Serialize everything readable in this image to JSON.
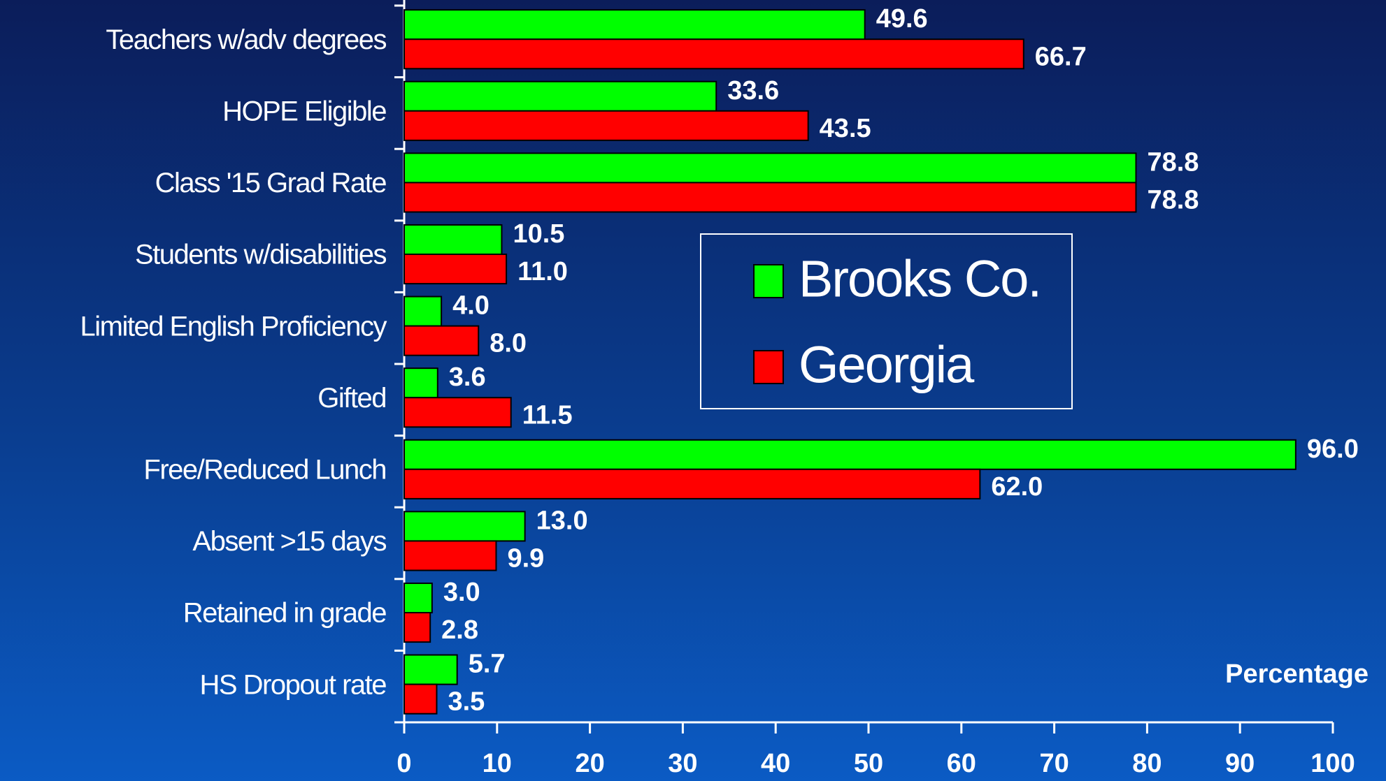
{
  "chart_data": {
    "type": "hbar",
    "categories": [
      "Teachers w/adv degrees",
      "HOPE Eligible",
      "Class '15 Grad Rate",
      "Students w/disabilities",
      "Limited English Proficiency",
      "Gifted",
      "Free/Reduced Lunch",
      "Absent >15 days",
      "Retained in grade",
      "HS Dropout rate"
    ],
    "series": [
      {
        "name": "Brooks Co.",
        "color": "#00ff00",
        "values": [
          49.6,
          33.6,
          78.8,
          10.5,
          4.0,
          3.6,
          96.0,
          13.0,
          3.0,
          5.7
        ],
        "value_labels": [
          "49.6",
          "33.6",
          "78.8",
          "10.5",
          "4.0",
          "3.6",
          "96.0",
          "13.0",
          "3.0",
          "5.7"
        ]
      },
      {
        "name": "Georgia",
        "color": "#ff0000",
        "values": [
          66.7,
          43.5,
          78.8,
          11.0,
          8.0,
          11.5,
          62.0,
          9.9,
          2.8,
          3.5
        ],
        "value_labels": [
          "66.7",
          "43.5",
          "78.8",
          "11.0",
          "8.0",
          "11.5",
          "62.0",
          "9.9",
          "2.8",
          "3.5"
        ]
      }
    ],
    "x_label": "Percentage",
    "xlim": [
      0,
      100
    ],
    "xticks": [
      0,
      10,
      20,
      30,
      40,
      50,
      60,
      70,
      80,
      90,
      100
    ]
  }
}
